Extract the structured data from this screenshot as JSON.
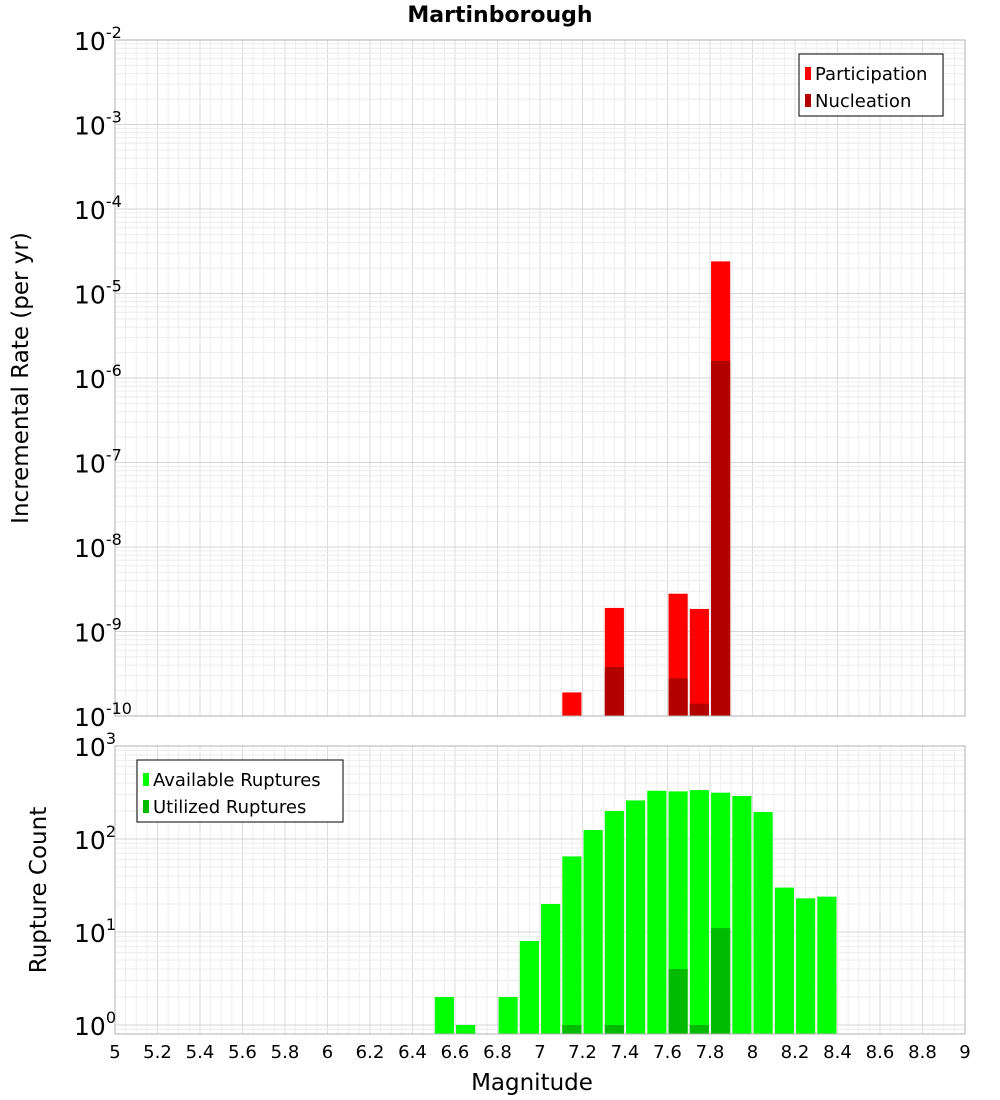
{
  "chart_data": [
    {
      "type": "bar",
      "title": "Martinborough",
      "ylabel": "Incremental Rate (per yr)",
      "xlabel": "",
      "xlim": [
        5,
        9
      ],
      "ylim": [
        1e-10,
        0.01
      ],
      "yscale": "log",
      "y_ticks": [
        {
          "base": "10",
          "exp": "-10"
        },
        {
          "base": "10",
          "exp": "-9"
        },
        {
          "base": "10",
          "exp": "-8"
        },
        {
          "base": "10",
          "exp": "-7"
        },
        {
          "base": "10",
          "exp": "-6"
        },
        {
          "base": "10",
          "exp": "-5"
        },
        {
          "base": "10",
          "exp": "-4"
        },
        {
          "base": "10",
          "exp": "-3"
        },
        {
          "base": "10",
          "exp": "-2"
        }
      ],
      "grid": true,
      "legend_position": "top-right",
      "series": [
        {
          "name": "Participation",
          "color": "#ff0000",
          "x": [
            7.15,
            7.35,
            7.65,
            7.75,
            7.85
          ],
          "values": [
            1.9e-10,
            1.9e-09,
            2.8e-09,
            1.85e-09,
            2.4e-05
          ]
        },
        {
          "name": "Nucleation",
          "color": "#b30000",
          "x": [
            7.35,
            7.65,
            7.75,
            7.85
          ],
          "values": [
            3.8e-10,
            2.8e-10,
            1.4e-10,
            1.6e-06
          ]
        }
      ]
    },
    {
      "type": "bar",
      "title": "",
      "ylabel": "Rupture Count",
      "xlabel": "Magnitude",
      "xlim": [
        5,
        9
      ],
      "ylim": [
        0.8,
        1000
      ],
      "yscale": "log",
      "y_ticks": [
        {
          "base": "10",
          "exp": "0"
        },
        {
          "base": "10",
          "exp": "1"
        },
        {
          "base": "10",
          "exp": "2"
        },
        {
          "base": "10",
          "exp": "3"
        }
      ],
      "x_ticks": [
        "5",
        "5.2",
        "5.4",
        "5.6",
        "5.8",
        "6",
        "6.2",
        "6.4",
        "6.6",
        "6.8",
        "7",
        "7.2",
        "7.4",
        "7.6",
        "7.8",
        "8",
        "8.2",
        "8.4",
        "8.6",
        "8.8",
        "9"
      ],
      "grid": true,
      "legend_position": "top-left",
      "series": [
        {
          "name": "Available Ruptures",
          "color": "#00ff00",
          "x": [
            6.55,
            6.65,
            6.85,
            6.95,
            7.05,
            7.15,
            7.25,
            7.35,
            7.45,
            7.55,
            7.65,
            7.75,
            7.85,
            7.95,
            8.05,
            8.15,
            8.25,
            8.35
          ],
          "values": [
            2,
            1,
            2,
            8,
            20,
            65,
            125,
            200,
            260,
            330,
            325,
            335,
            315,
            290,
            195,
            30,
            23,
            24
          ]
        },
        {
          "name": "Utilized Ruptures",
          "color": "#00bb00",
          "x": [
            7.15,
            7.35,
            7.65,
            7.75,
            7.85
          ],
          "values": [
            1,
            1,
            4,
            1,
            11
          ]
        }
      ]
    }
  ]
}
